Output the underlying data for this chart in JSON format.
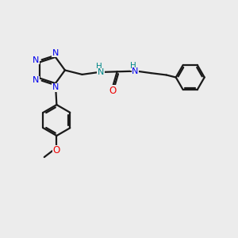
{
  "bg_color": "#ececec",
  "atom_colors": {
    "N": "#0000ee",
    "O": "#ee0000",
    "C": "#000000",
    "H": "#008888"
  },
  "bond_color": "#1a1a1a",
  "bond_width": 1.6
}
